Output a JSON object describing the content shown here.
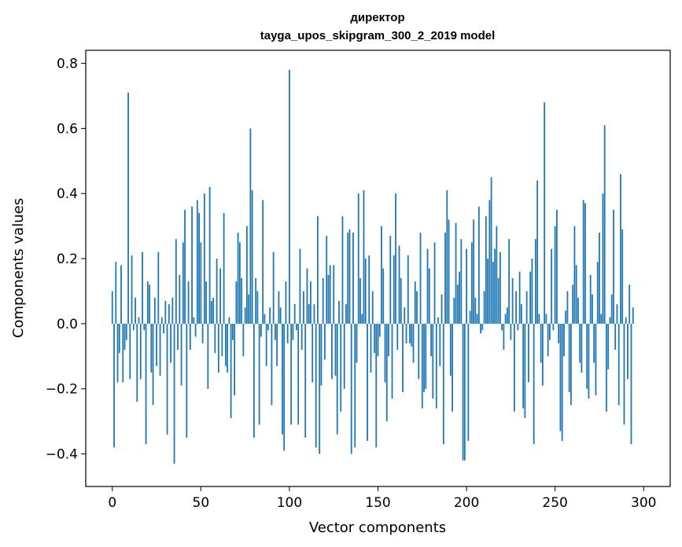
{
  "chart_data": {
    "type": "bar",
    "title": "директор",
    "subtitle": "tayga_upos_skipgram_300_2_2019 model",
    "xlabel": "Vector components",
    "ylabel": "Components values",
    "xlim": [
      -15,
      315
    ],
    "ylim": [
      -0.5,
      0.84
    ],
    "x_ticks": [
      0,
      50,
      100,
      150,
      200,
      250,
      300
    ],
    "y_ticks": [
      -0.4,
      -0.2,
      0.0,
      0.2,
      0.4,
      0.6,
      0.8
    ],
    "x_tick_labels": [
      "0",
      "50",
      "100",
      "150",
      "200",
      "250",
      "300"
    ],
    "y_tick_labels": [
      "−0.4",
      "−0.2",
      "0.0",
      "0.2",
      "0.4",
      "0.6",
      "0.8"
    ],
    "grid": false,
    "bar_color": "#1f77b4",
    "values": [
      0.1,
      -0.38,
      0.19,
      -0.18,
      -0.09,
      0.18,
      -0.18,
      -0.08,
      -0.05,
      0.71,
      -0.17,
      0.21,
      -0.02,
      0.08,
      -0.24,
      0.02,
      -0.17,
      0.22,
      -0.02,
      -0.37,
      0.13,
      0.12,
      -0.15,
      -0.25,
      0.08,
      -0.13,
      0.22,
      -0.16,
      0.02,
      -0.03,
      0.07,
      -0.34,
      0.06,
      -0.12,
      0.08,
      -0.43,
      0.26,
      -0.08,
      0.15,
      -0.19,
      0.25,
      0.35,
      -0.35,
      0.13,
      -0.08,
      0.36,
      0.02,
      -0.04,
      0.38,
      0.34,
      0.25,
      -0.06,
      0.4,
      0.13,
      -0.2,
      0.42,
      0.07,
      0.08,
      -0.09,
      0.2,
      -0.15,
      0.17,
      -0.1,
      0.34,
      -0.13,
      -0.15,
      0.02,
      -0.29,
      -0.05,
      -0.22,
      0.13,
      0.28,
      0.25,
      0.14,
      -0.1,
      0.05,
      0.3,
      0.09,
      0.6,
      0.41,
      -0.35,
      0.14,
      0.1,
      -0.31,
      -0.04,
      0.38,
      0.03,
      -0.13,
      -0.02,
      0.05,
      -0.25,
      0.22,
      -0.05,
      -0.13,
      0.1,
      0.05,
      -0.34,
      -0.39,
      0.13,
      -0.06,
      0.78,
      -0.31,
      -0.05,
      0.06,
      -0.02,
      -0.31,
      0.23,
      -0.08,
      0.1,
      -0.35,
      0.17,
      0.06,
      0.13,
      -0.18,
      0.06,
      -0.38,
      0.33,
      -0.4,
      -0.19,
      0.14,
      -0.11,
      0.27,
      0.15,
      0.18,
      -0.17,
      0.18,
      -0.16,
      -0.34,
      0.07,
      -0.27,
      0.33,
      -0.2,
      0.06,
      0.28,
      0.29,
      -0.4,
      0.28,
      -0.38,
      -0.12,
      0.4,
      0.14,
      0.03,
      0.41,
      0.2,
      -0.36,
      0.21,
      -0.15,
      0.1,
      -0.09,
      -0.38,
      -0.1,
      -0.04,
      0.3,
      0.17,
      -0.18,
      -0.3,
      -0.1,
      0.27,
      -0.23,
      0.21,
      0.4,
      -0.08,
      0.24,
      0.14,
      -0.21,
      0.05,
      -0.06,
      0.21,
      -0.06,
      -0.07,
      -0.12,
      0.13,
      0.1,
      -0.17,
      0.28,
      -0.26,
      -0.21,
      -0.2,
      0.23,
      0.17,
      -0.1,
      -0.23,
      0.25,
      -0.26,
      0.02,
      -0.13,
      0.09,
      -0.37,
      0.28,
      0.41,
      0.32,
      -0.16,
      -0.27,
      0.08,
      0.31,
      0.12,
      0.16,
      0.26,
      -0.42,
      -0.42,
      0.23,
      -0.36,
      0.04,
      0.25,
      0.32,
      0.08,
      0.03,
      0.36,
      -0.03,
      -0.02,
      0.1,
      0.33,
      0.2,
      0.38,
      0.45,
      0.19,
      0.23,
      0.3,
      0.14,
      0.22,
      -0.02,
      -0.08,
      0.03,
      0.05,
      0.26,
      -0.05,
      0.14,
      -0.27,
      0.1,
      -0.02,
      0.16,
      0.06,
      -0.26,
      -0.29,
      0.1,
      -0.18,
      0.16,
      0.2,
      -0.37,
      0.26,
      0.44,
      0.03,
      -0.12,
      -0.19,
      0.68,
      0.03,
      -0.1,
      -0.05,
      0.23,
      -0.02,
      0.3,
      0.35,
      -0.06,
      -0.33,
      -0.36,
      -0.1,
      0.04,
      0.1,
      -0.21,
      -0.25,
      0.12,
      0.3,
      0.18,
      0.08,
      -0.12,
      -0.15,
      0.38,
      0.37,
      -0.2,
      -0.23,
      0.15,
      0.09,
      -0.12,
      -0.22,
      0.19,
      0.28,
      0.03,
      0.4,
      0.61,
      -0.27,
      -0.14,
      0.02,
      0.09,
      0.35,
      -0.08,
      0.06,
      -0.25,
      0.46,
      0.29,
      -0.31,
      0.02,
      -0.17,
      0.12,
      -0.37,
      0.05
    ]
  }
}
